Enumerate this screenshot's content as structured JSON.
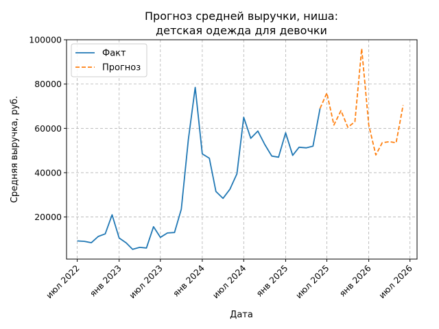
{
  "chart_data": {
    "type": "line",
    "title_lines": [
      "Прогноз средней выручки, ниша:",
      "детская одежда для девочки"
    ],
    "xlabel": "Дата",
    "ylabel": "Средняя выручка, руб.",
    "x_axis_type": "date",
    "xlim": [
      "2022-05-15",
      "2026-08-01"
    ],
    "ylim": [
      1000,
      100000
    ],
    "grid": true,
    "grid_style": "dashed",
    "legend_position": "top-left",
    "x_ticks": [
      {
        "date": "2022-07-01",
        "label": "июл 2022"
      },
      {
        "date": "2023-01-01",
        "label": "янв 2023"
      },
      {
        "date": "2023-07-01",
        "label": "июл 2023"
      },
      {
        "date": "2024-01-01",
        "label": "янв 2024"
      },
      {
        "date": "2024-07-01",
        "label": "июл 2024"
      },
      {
        "date": "2025-01-01",
        "label": "янв 2025"
      },
      {
        "date": "2025-07-01",
        "label": "июл 2025"
      },
      {
        "date": "2026-01-01",
        "label": "янв 2026"
      },
      {
        "date": "2026-07-01",
        "label": "июл 2026"
      }
    ],
    "y_ticks": [
      {
        "value": 20000,
        "label": "20000"
      },
      {
        "value": 40000,
        "label": "40000"
      },
      {
        "value": 60000,
        "label": "60000"
      },
      {
        "value": 80000,
        "label": "80000"
      },
      {
        "value": 100000,
        "label": "100000"
      }
    ],
    "series": [
      {
        "name": "Факт",
        "color": "#1f77b4",
        "style": "solid",
        "points": [
          [
            "2022-07-01",
            9200
          ],
          [
            "2022-08-01",
            9000
          ],
          [
            "2022-09-01",
            8400
          ],
          [
            "2022-10-01",
            11200
          ],
          [
            "2022-11-01",
            12400
          ],
          [
            "2022-12-01",
            21000
          ],
          [
            "2023-01-01",
            10500
          ],
          [
            "2023-02-01",
            8300
          ],
          [
            "2023-03-01",
            5400
          ],
          [
            "2023-04-01",
            6300
          ],
          [
            "2023-05-01",
            6000
          ],
          [
            "2023-06-01",
            15600
          ],
          [
            "2023-07-01",
            10800
          ],
          [
            "2023-08-01",
            12800
          ],
          [
            "2023-09-01",
            13000
          ],
          [
            "2023-10-01",
            23500
          ],
          [
            "2023-11-01",
            55000
          ],
          [
            "2023-12-01",
            78500
          ],
          [
            "2024-01-01",
            48500
          ],
          [
            "2024-02-01",
            46500
          ],
          [
            "2024-03-01",
            31500
          ],
          [
            "2024-04-01",
            28400
          ],
          [
            "2024-05-01",
            32500
          ],
          [
            "2024-06-01",
            39500
          ],
          [
            "2024-07-01",
            65000
          ],
          [
            "2024-08-01",
            55500
          ],
          [
            "2024-09-01",
            58800
          ],
          [
            "2024-10-01",
            52800
          ],
          [
            "2024-11-01",
            47500
          ],
          [
            "2024-12-01",
            47000
          ],
          [
            "2025-01-01",
            58000
          ],
          [
            "2025-02-01",
            47800
          ],
          [
            "2025-03-01",
            51500
          ],
          [
            "2025-04-01",
            51200
          ],
          [
            "2025-05-01",
            52000
          ],
          [
            "2025-06-01",
            69000
          ]
        ]
      },
      {
        "name": "Прогноз",
        "color": "#ff7f0e",
        "style": "dashed",
        "points": [
          [
            "2025-06-01",
            69000
          ],
          [
            "2025-07-01",
            76000
          ],
          [
            "2025-08-01",
            61500
          ],
          [
            "2025-09-01",
            68000
          ],
          [
            "2025-10-01",
            60500
          ],
          [
            "2025-11-01",
            63000
          ],
          [
            "2025-12-01",
            96000
          ],
          [
            "2026-01-01",
            61500
          ],
          [
            "2026-02-01",
            48000
          ],
          [
            "2026-03-01",
            53500
          ],
          [
            "2026-04-01",
            54000
          ],
          [
            "2026-05-01",
            53500
          ],
          [
            "2026-06-01",
            70500
          ]
        ]
      }
    ]
  }
}
